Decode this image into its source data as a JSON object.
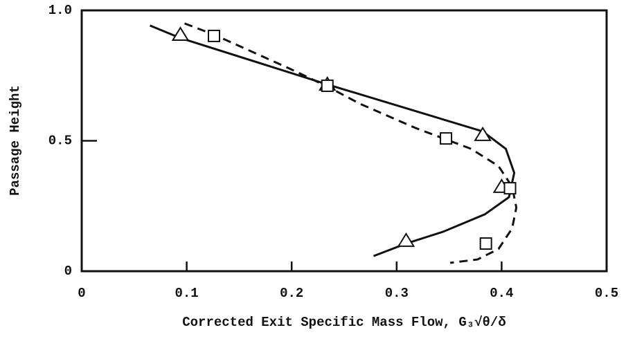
{
  "chart_data": {
    "type": "line",
    "xlabel": "Corrected Exit Specific Mass Flow, G₃√θ/δ",
    "ylabel": "Passage Height",
    "xlim": [
      0,
      0.5
    ],
    "xticks": [
      0,
      0.1,
      0.2,
      0.3,
      0.4,
      0.5
    ],
    "ylim": [
      0,
      1
    ],
    "yticks": [
      0,
      0.5,
      {
        "value": 1,
        "label": "1.0"
      }
    ],
    "series": [
      {
        "color": "#111111",
        "marker": "triangle",
        "dash": false,
        "x": [
          0.094,
          0.234,
          0.382,
          0.4,
          0.309
        ],
        "values": [
          0.907,
          0.716,
          0.523,
          0.324,
          0.117
        ],
        "fit_x": [
          0.065,
          0.094,
          0.234,
          0.382,
          0.404,
          0.412,
          0.407,
          0.384,
          0.344,
          0.309,
          0.278
        ],
        "fit_y": [
          0.942,
          0.894,
          0.716,
          0.536,
          0.469,
          0.377,
          0.284,
          0.218,
          0.151,
          0.106,
          0.058
        ]
      },
      {
        "color": "#111111",
        "marker": "square",
        "dash": true,
        "x": [
          0.126,
          0.234,
          0.347,
          0.408,
          0.385
        ],
        "values": [
          0.902,
          0.711,
          0.509,
          0.318,
          0.106
        ],
        "fit_x": [
          0.098,
          0.126,
          0.199,
          0.234,
          0.265,
          0.318,
          0.371,
          0.397,
          0.41,
          0.414,
          0.41,
          0.397,
          0.377,
          0.351
        ],
        "fit_y": [
          0.95,
          0.907,
          0.775,
          0.708,
          0.642,
          0.549,
          0.469,
          0.403,
          0.324,
          0.244,
          0.164,
          0.085,
          0.045,
          0.032
        ]
      }
    ]
  }
}
